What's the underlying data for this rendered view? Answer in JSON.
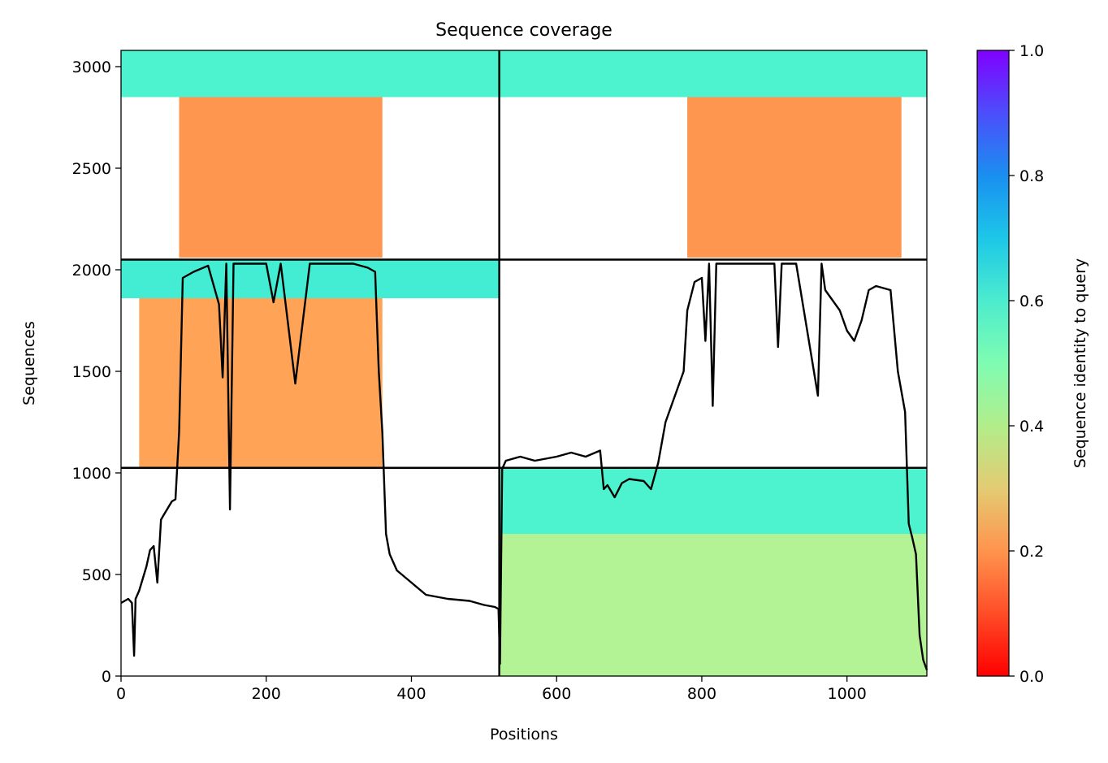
{
  "chart_data": {
    "type": "heatmap",
    "title": "Sequence coverage",
    "xlabel": "Positions",
    "ylabel": "Sequences",
    "xlim": [
      0,
      1110
    ],
    "ylim": [
      0,
      3080
    ],
    "xticks": [
      "0",
      "200",
      "400",
      "600",
      "800",
      "1000"
    ],
    "xtick_values": [
      0,
      200,
      400,
      600,
      800,
      1000
    ],
    "yticks": [
      "0",
      "500",
      "1000",
      "1500",
      "2000",
      "2500",
      "3000"
    ],
    "ytick_values": [
      0,
      500,
      1000,
      1500,
      2000,
      2500,
      3000
    ],
    "grid": false,
    "colorbar": {
      "label": "Sequence identity to query",
      "range": [
        0,
        1
      ],
      "ticks": [
        "0.0",
        "0.2",
        "0.4",
        "0.6",
        "0.8",
        "1.0"
      ],
      "tick_values": [
        0,
        0.2,
        0.4,
        0.6,
        0.8,
        1.0
      ],
      "colormap": "rainbow_r"
    },
    "dividers": {
      "vertical_x": 521,
      "horizontal_y": [
        1025,
        2050
      ]
    },
    "blocks": [
      {
        "x0": 0,
        "x1": 520,
        "y0": 2850,
        "y1": 3080,
        "identity": 0.6
      },
      {
        "x0": 80,
        "x1": 360,
        "y0": 2060,
        "y1": 2850,
        "identity": 0.2
      },
      {
        "x0": 522,
        "x1": 1110,
        "y0": 2850,
        "y1": 3080,
        "identity": 0.6
      },
      {
        "x0": 780,
        "x1": 1075,
        "y0": 2060,
        "y1": 2850,
        "identity": 0.2
      },
      {
        "x0": 0,
        "x1": 520,
        "y0": 1860,
        "y1": 2050,
        "identity": 0.62
      },
      {
        "x0": 25,
        "x1": 360,
        "y0": 1030,
        "y1": 1860,
        "identity": 0.22
      },
      {
        "x0": 522,
        "x1": 1110,
        "y0": 700,
        "y1": 1025,
        "identity": 0.6
      },
      {
        "x0": 522,
        "x1": 1110,
        "y0": 0,
        "y1": 700,
        "identity": 0.4
      }
    ],
    "series": [
      {
        "type": "line",
        "color": "#000000",
        "x": [
          0,
          10,
          15,
          18,
          20,
          25,
          30,
          35,
          40,
          45,
          50,
          55,
          60,
          65,
          70,
          75,
          80,
          85,
          100,
          120,
          135,
          140,
          145,
          150,
          155,
          160,
          180,
          200,
          210,
          220,
          240,
          260,
          280,
          300,
          320,
          340,
          350,
          355,
          360,
          365,
          370,
          380,
          400,
          420,
          450,
          480,
          500,
          515,
          520,
          522,
          525,
          530,
          550,
          570,
          600,
          620,
          640,
          660,
          665,
          670,
          680,
          690,
          700,
          720,
          730,
          740,
          750,
          760,
          775,
          780,
          790,
          800,
          805,
          810,
          815,
          820,
          830,
          860,
          880,
          900,
          905,
          910,
          930,
          960,
          965,
          970,
          990,
          1000,
          1010,
          1020,
          1030,
          1040,
          1060,
          1070,
          1080,
          1085,
          1090,
          1095,
          1100,
          1105,
          1110
        ],
        "y": [
          360,
          380,
          360,
          100,
          380,
          420,
          480,
          540,
          620,
          640,
          460,
          770,
          800,
          830,
          860,
          870,
          1200,
          1960,
          1990,
          2020,
          1830,
          1470,
          2030,
          820,
          2030,
          2030,
          2030,
          2030,
          1840,
          2030,
          1440,
          2030,
          2030,
          2030,
          2030,
          2010,
          1990,
          1500,
          1200,
          700,
          600,
          520,
          460,
          400,
          380,
          370,
          350,
          340,
          330,
          60,
          1020,
          1060,
          1080,
          1060,
          1080,
          1100,
          1080,
          1110,
          920,
          940,
          880,
          950,
          970,
          960,
          920,
          1050,
          1250,
          1350,
          1500,
          1800,
          1940,
          1960,
          1650,
          2030,
          1330,
          2030,
          2030,
          2030,
          2030,
          2030,
          1620,
          2030,
          2030,
          1380,
          2030,
          1900,
          1800,
          1700,
          1650,
          1750,
          1900,
          1920,
          1900,
          1500,
          1300,
          750,
          680,
          600,
          200,
          80,
          30
        ]
      }
    ]
  }
}
